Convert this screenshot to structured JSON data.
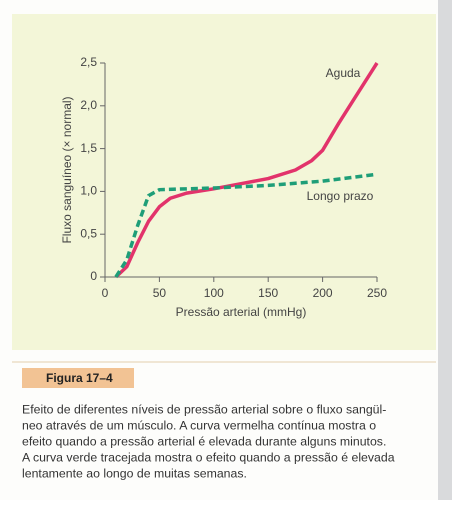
{
  "chart_data": {
    "type": "line",
    "x_label": "Pressão arterial (mmHg)",
    "y_label": "Fluxo sanguíneo (× normal)",
    "xlim": [
      0,
      250
    ],
    "xticks": [
      0,
      50,
      100,
      150,
      200,
      250
    ],
    "ylim": [
      0,
      2.5
    ],
    "yticks": [
      {
        "value": 0,
        "label": "0"
      },
      {
        "value": 0.5,
        "label": "0,5"
      },
      {
        "value": 1,
        "label": "1,0"
      },
      {
        "value": 1.5,
        "label": "1,5"
      },
      {
        "value": 2,
        "label": "2,0"
      },
      {
        "value": 2.5,
        "label": "2,5"
      }
    ],
    "series": [
      {
        "name": "Aguda",
        "color": "#e2336b",
        "dashed": false,
        "x": [
          10,
          20,
          30,
          40,
          50,
          60,
          75,
          100,
          125,
          150,
          175,
          190,
          200,
          215,
          230,
          245,
          250
        ],
        "values": [
          0,
          0.12,
          0.4,
          0.65,
          0.82,
          0.92,
          0.98,
          1.03,
          1.09,
          1.15,
          1.25,
          1.36,
          1.48,
          1.8,
          2.1,
          2.4,
          2.5
        ]
      },
      {
        "name": "Longo prazo",
        "color": "#1e9e78",
        "dashed": true,
        "x": [
          10,
          20,
          30,
          40,
          50,
          75,
          100,
          150,
          200,
          250
        ],
        "values": [
          0,
          0.2,
          0.6,
          0.95,
          1.02,
          1.03,
          1.04,
          1.07,
          1.12,
          1.2
        ]
      }
    ]
  },
  "figure_label": "Figura 17–4",
  "caption_lines": [
    "Efeito de diferentes níveis de pressão arterial sobre o fluxo sangül-",
    "neo através de um músculo. A curva vermelha contínua mostra o",
    "efeito quando a pressão arterial é elevada durante alguns minutos.",
    "A curva verde tracejada mostra o efeito quando a pressão é elevada",
    "lentamente ao longo de muitas semanas."
  ]
}
